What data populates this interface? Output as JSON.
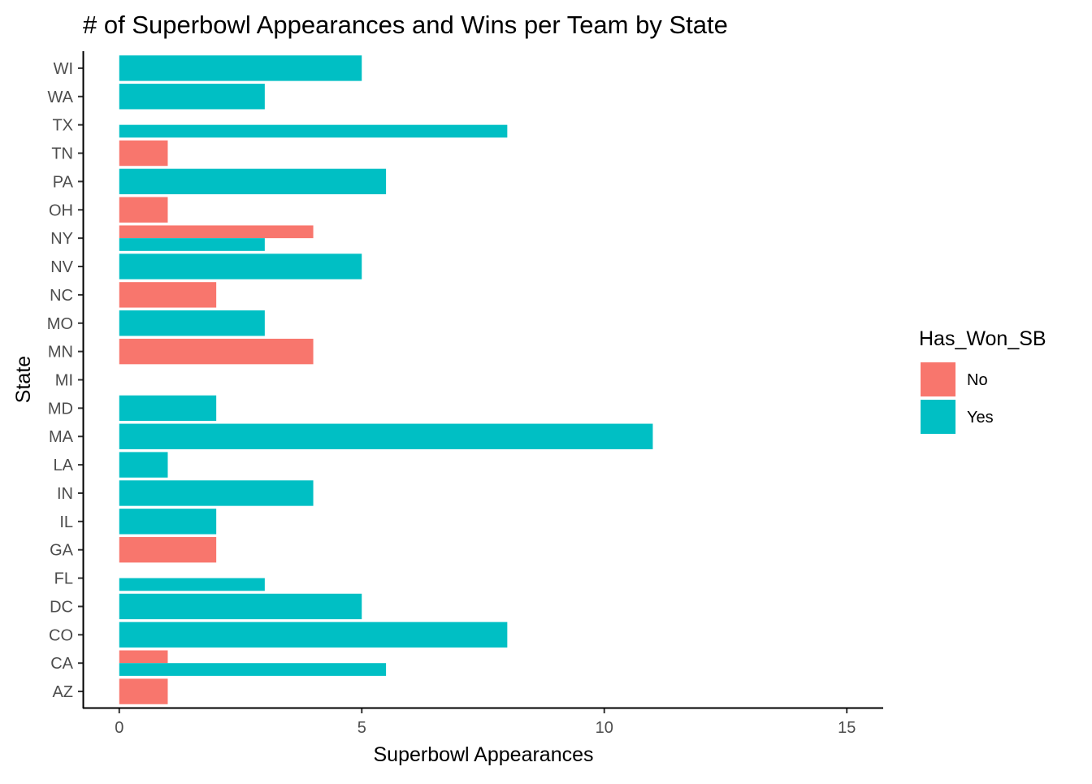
{
  "chart_data": {
    "type": "bar",
    "orientation": "horizontal",
    "position": "dodge",
    "title": "# of Superbowl Appearances and Wins per Team by State",
    "xlabel": "Superbowl Appearances",
    "ylabel": "State",
    "xlim": [
      -0.75,
      15.75
    ],
    "xticks": [
      0,
      5,
      10,
      15
    ],
    "xtick_labels": [
      "0",
      "5",
      "10",
      "15"
    ],
    "grid": false,
    "legend": {
      "title": "Has_Won_SB",
      "placement": "right",
      "entries": [
        {
          "label": "No",
          "color": "#F8766D"
        },
        {
          "label": "Yes",
          "color": "#00BFC4"
        }
      ]
    },
    "categories": [
      "AZ",
      "CA",
      "CO",
      "DC",
      "FL",
      "GA",
      "IL",
      "IN",
      "LA",
      "MA",
      "MD",
      "MI",
      "MN",
      "MO",
      "NC",
      "NV",
      "NY",
      "OH",
      "PA",
      "TN",
      "TX",
      "WA",
      "WI"
    ],
    "bars": [
      {
        "state": "AZ",
        "group": "No",
        "value": 1,
        "slot": 0,
        "slots": 1
      },
      {
        "state": "CA",
        "group": "No",
        "value": 1,
        "slot": 0,
        "slots": 2
      },
      {
        "state": "CA",
        "group": "Yes",
        "value": 5.5,
        "slot": 1,
        "slots": 2
      },
      {
        "state": "CO",
        "group": "Yes",
        "value": 8,
        "slot": 0,
        "slots": 1
      },
      {
        "state": "DC",
        "group": "Yes",
        "value": 5,
        "slot": 0,
        "slots": 1
      },
      {
        "state": "FL",
        "group": "Yes",
        "value": 3,
        "slot": 1,
        "slots": 2
      },
      {
        "state": "GA",
        "group": "No",
        "value": 2,
        "slot": 0,
        "slots": 1
      },
      {
        "state": "IL",
        "group": "Yes",
        "value": 2,
        "slot": 0,
        "slots": 1
      },
      {
        "state": "IN",
        "group": "Yes",
        "value": 4,
        "slot": 0,
        "slots": 1
      },
      {
        "state": "LA",
        "group": "Yes",
        "value": 1,
        "slot": 0,
        "slots": 1
      },
      {
        "state": "MA",
        "group": "Yes",
        "value": 11,
        "slot": 0,
        "slots": 1
      },
      {
        "state": "MD",
        "group": "Yes",
        "value": 2,
        "slot": 0,
        "slots": 1
      },
      {
        "state": "MN",
        "group": "No",
        "value": 4,
        "slot": 0,
        "slots": 1
      },
      {
        "state": "MO",
        "group": "Yes",
        "value": 3,
        "slot": 0,
        "slots": 1
      },
      {
        "state": "NC",
        "group": "No",
        "value": 2,
        "slot": 0,
        "slots": 1
      },
      {
        "state": "NV",
        "group": "Yes",
        "value": 5,
        "slot": 0,
        "slots": 1
      },
      {
        "state": "NY",
        "group": "No",
        "value": 4,
        "slot": 0,
        "slots": 2
      },
      {
        "state": "NY",
        "group": "Yes",
        "value": 3,
        "slot": 1,
        "slots": 2
      },
      {
        "state": "OH",
        "group": "No",
        "value": 1,
        "slot": 0,
        "slots": 1
      },
      {
        "state": "PA",
        "group": "Yes",
        "value": 5.5,
        "slot": 0,
        "slots": 1
      },
      {
        "state": "TN",
        "group": "No",
        "value": 1,
        "slot": 0,
        "slots": 1
      },
      {
        "state": "TX",
        "group": "Yes",
        "value": 8,
        "slot": 1,
        "slots": 2
      },
      {
        "state": "WA",
        "group": "Yes",
        "value": 3,
        "slot": 0,
        "slots": 1
      },
      {
        "state": "WI",
        "group": "Yes",
        "value": 5,
        "slot": 0,
        "slots": 1
      }
    ]
  }
}
